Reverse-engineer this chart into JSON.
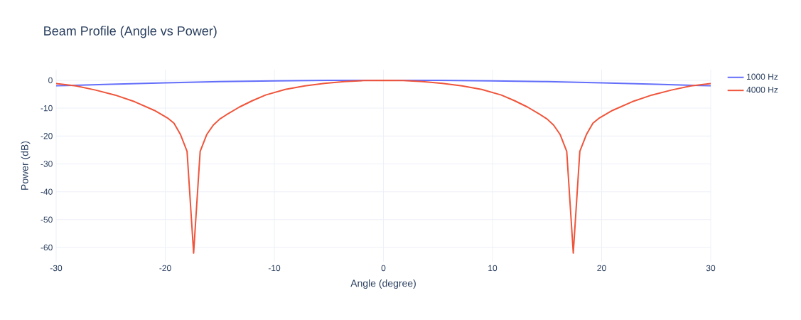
{
  "chart_data": {
    "type": "line",
    "title": "Beam Profile (Angle vs Power)",
    "xlabel": "Angle (degree)",
    "ylabel": "Power (dB)",
    "xlim": [
      -30,
      30
    ],
    "ylim": [
      -65.1,
      3.8
    ],
    "xticks": [
      -30,
      -20,
      -10,
      0,
      10,
      20,
      30
    ],
    "yticks": [
      -60,
      -50,
      -40,
      -30,
      -20,
      -10,
      0
    ],
    "grid": true,
    "legend": "top right",
    "line_style": "solid",
    "marker": "none",
    "series": [
      {
        "name": "1000 Hz",
        "color": "#636efa",
        "x": [
          -30,
          -25,
          -20,
          -15,
          -10,
          -5,
          0,
          5,
          10,
          15,
          20,
          25,
          30
        ],
        "values": [
          -2.0,
          -1.4,
          -0.9,
          -0.5,
          -0.25,
          -0.05,
          0,
          -0.05,
          -0.25,
          -0.5,
          -0.9,
          -1.4,
          -2.0
        ]
      },
      {
        "name": "4000 Hz",
        "color": "#ef553b",
        "x": [
          -30,
          -28.2,
          -26.4,
          -24.6,
          -22.8,
          -21,
          -19.8,
          -19.2,
          -18.6,
          -18,
          -17.4,
          -16.8,
          -16.2,
          -15.6,
          -15,
          -14.4,
          -13.2,
          -12,
          -10.8,
          -9,
          -7.2,
          -5.4,
          -3.6,
          -1.8,
          0,
          1.8,
          3.6,
          5.4,
          7.2,
          9,
          10.8,
          12,
          13.2,
          14.4,
          15,
          15.6,
          16.2,
          16.8,
          17.4,
          18,
          18.6,
          19.2,
          19.8,
          21,
          22.8,
          24.6,
          26.4,
          28.2,
          30
        ],
        "values": [
          -1.2,
          -2.0,
          -3.5,
          -5.3,
          -7.7,
          -10.8,
          -13.5,
          -15.4,
          -19.5,
          -25.5,
          -62,
          -25.5,
          -19.5,
          -16.1,
          -13.9,
          -12.4,
          -9.6,
          -7.3,
          -5.3,
          -3.3,
          -2.0,
          -1.1,
          -0.5,
          -0.1,
          0,
          -0.1,
          -0.5,
          -1.1,
          -2.0,
          -3.3,
          -5.3,
          -7.3,
          -9.6,
          -12.4,
          -13.9,
          -16.1,
          -19.5,
          -25.5,
          -62,
          -25.5,
          -19.5,
          -15.4,
          -13.5,
          -10.8,
          -7.7,
          -5.3,
          -3.5,
          -2.0,
          -1.2
        ]
      }
    ]
  }
}
